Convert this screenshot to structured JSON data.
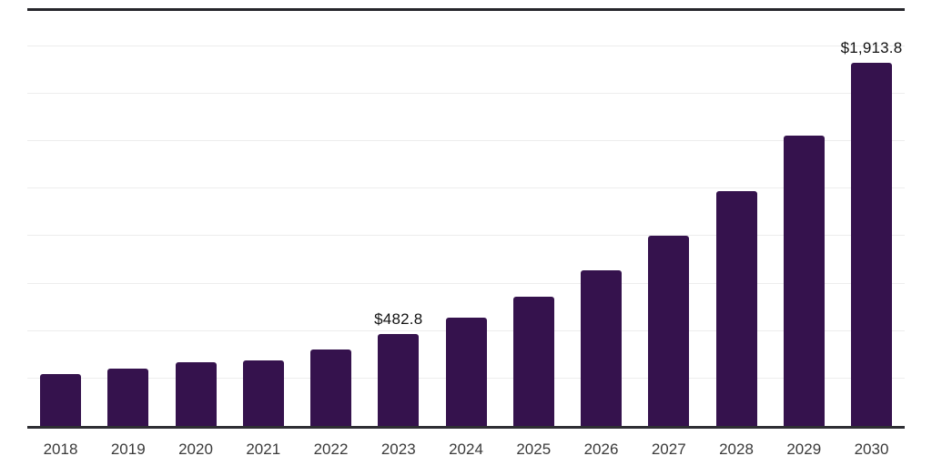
{
  "chart_data": {
    "type": "bar",
    "title": "",
    "xlabel": "",
    "ylabel": "",
    "categories": [
      "2018",
      "2019",
      "2020",
      "2021",
      "2022",
      "2023",
      "2024",
      "2025",
      "2026",
      "2027",
      "2028",
      "2029",
      "2030"
    ],
    "values": [
      272,
      300,
      337,
      347,
      405,
      482.8,
      570,
      682,
      820,
      1002,
      1235,
      1528,
      1913.8
    ],
    "labeled_points": [
      {
        "category": "2023",
        "label": "$482.8"
      },
      {
        "category": "2030",
        "label": "$1,913.8"
      }
    ],
    "ylim": [
      0,
      2200
    ],
    "gridline_step": 250,
    "grid": true,
    "legend": false,
    "y_axis_labels_visible": false,
    "colors": {
      "bar": "#35124D",
      "top_rule": "#26262b",
      "axis_line": "#2e2e33",
      "gridline": "#ededed",
      "value_label_text": "#121212",
      "tick_label_text": "#3a3a3a",
      "background": "#ffffff"
    }
  }
}
